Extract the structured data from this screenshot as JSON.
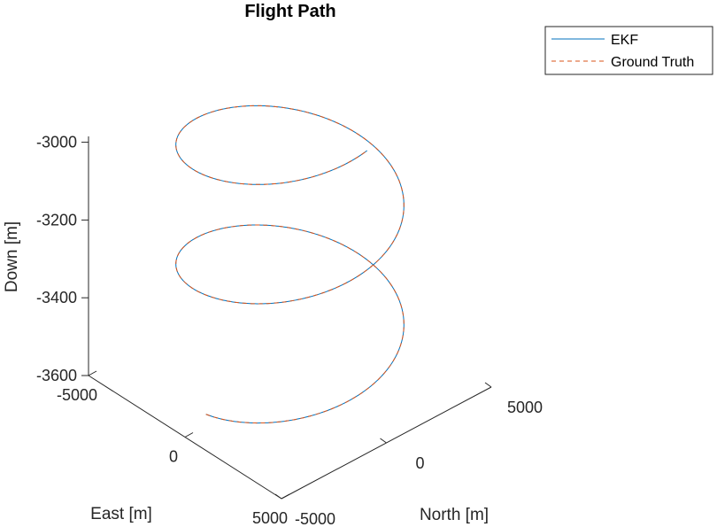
{
  "chart_data": {
    "type": "line",
    "projection": "3d",
    "title": "Flight Path",
    "xlabel": "North [m]",
    "ylabel": "East [m]",
    "zlabel": "Down [m]",
    "xlim": [
      -5000,
      5000
    ],
    "ylim": [
      -5000,
      5000
    ],
    "zlim": [
      -3600,
      -2900
    ],
    "x_ticks": [
      {
        "value": -5000,
        "label": "-5000"
      },
      {
        "value": 0,
        "label": "0"
      },
      {
        "value": 5000,
        "label": "5000"
      }
    ],
    "y_ticks": [
      {
        "value": -5000,
        "label": "-5000"
      },
      {
        "value": 0,
        "label": "0"
      },
      {
        "value": 5000,
        "label": "5000"
      }
    ],
    "z_ticks": [
      {
        "value": -3000,
        "label": "-3000"
      },
      {
        "value": -3200,
        "label": "-3200"
      },
      {
        "value": -3400,
        "label": "-3400"
      },
      {
        "value": -3600,
        "label": "-3600"
      }
    ],
    "grid": false,
    "legend_position": "top-right",
    "helix": {
      "center_north": 0,
      "center_east": 0,
      "radius": 4000,
      "start_down": -3570,
      "end_down": -2880,
      "turns": 2.25
    },
    "series": [
      {
        "name": "EKF",
        "color": "#0072BD",
        "style": "solid"
      },
      {
        "name": "Ground Truth",
        "color": "#D95319",
        "style": "dashed"
      }
    ]
  }
}
